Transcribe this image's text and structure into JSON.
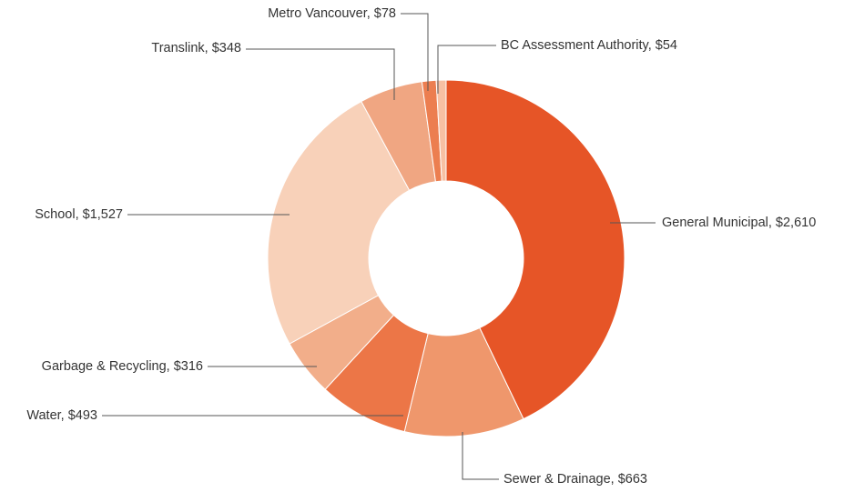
{
  "chart_data": {
    "type": "donut",
    "values": [
      2610,
      663,
      493,
      316,
      1527,
      348,
      78,
      54
    ],
    "value_labels": [
      "General Municipal, $2,610",
      "Sewer & Drainage, $663",
      "Water, $493",
      "Garbage & Recycling, $316",
      "School, $1,527",
      "Translink, $348",
      "Metro Vancouver, $78",
      "BC Assessment Authority, $54"
    ],
    "colors": [
      "#e65527",
      "#ef976c",
      "#ec7647",
      "#f2ae8a",
      "#f8d1b9",
      "#f0a682",
      "#ec7e50",
      "#f7c0a3"
    ]
  }
}
